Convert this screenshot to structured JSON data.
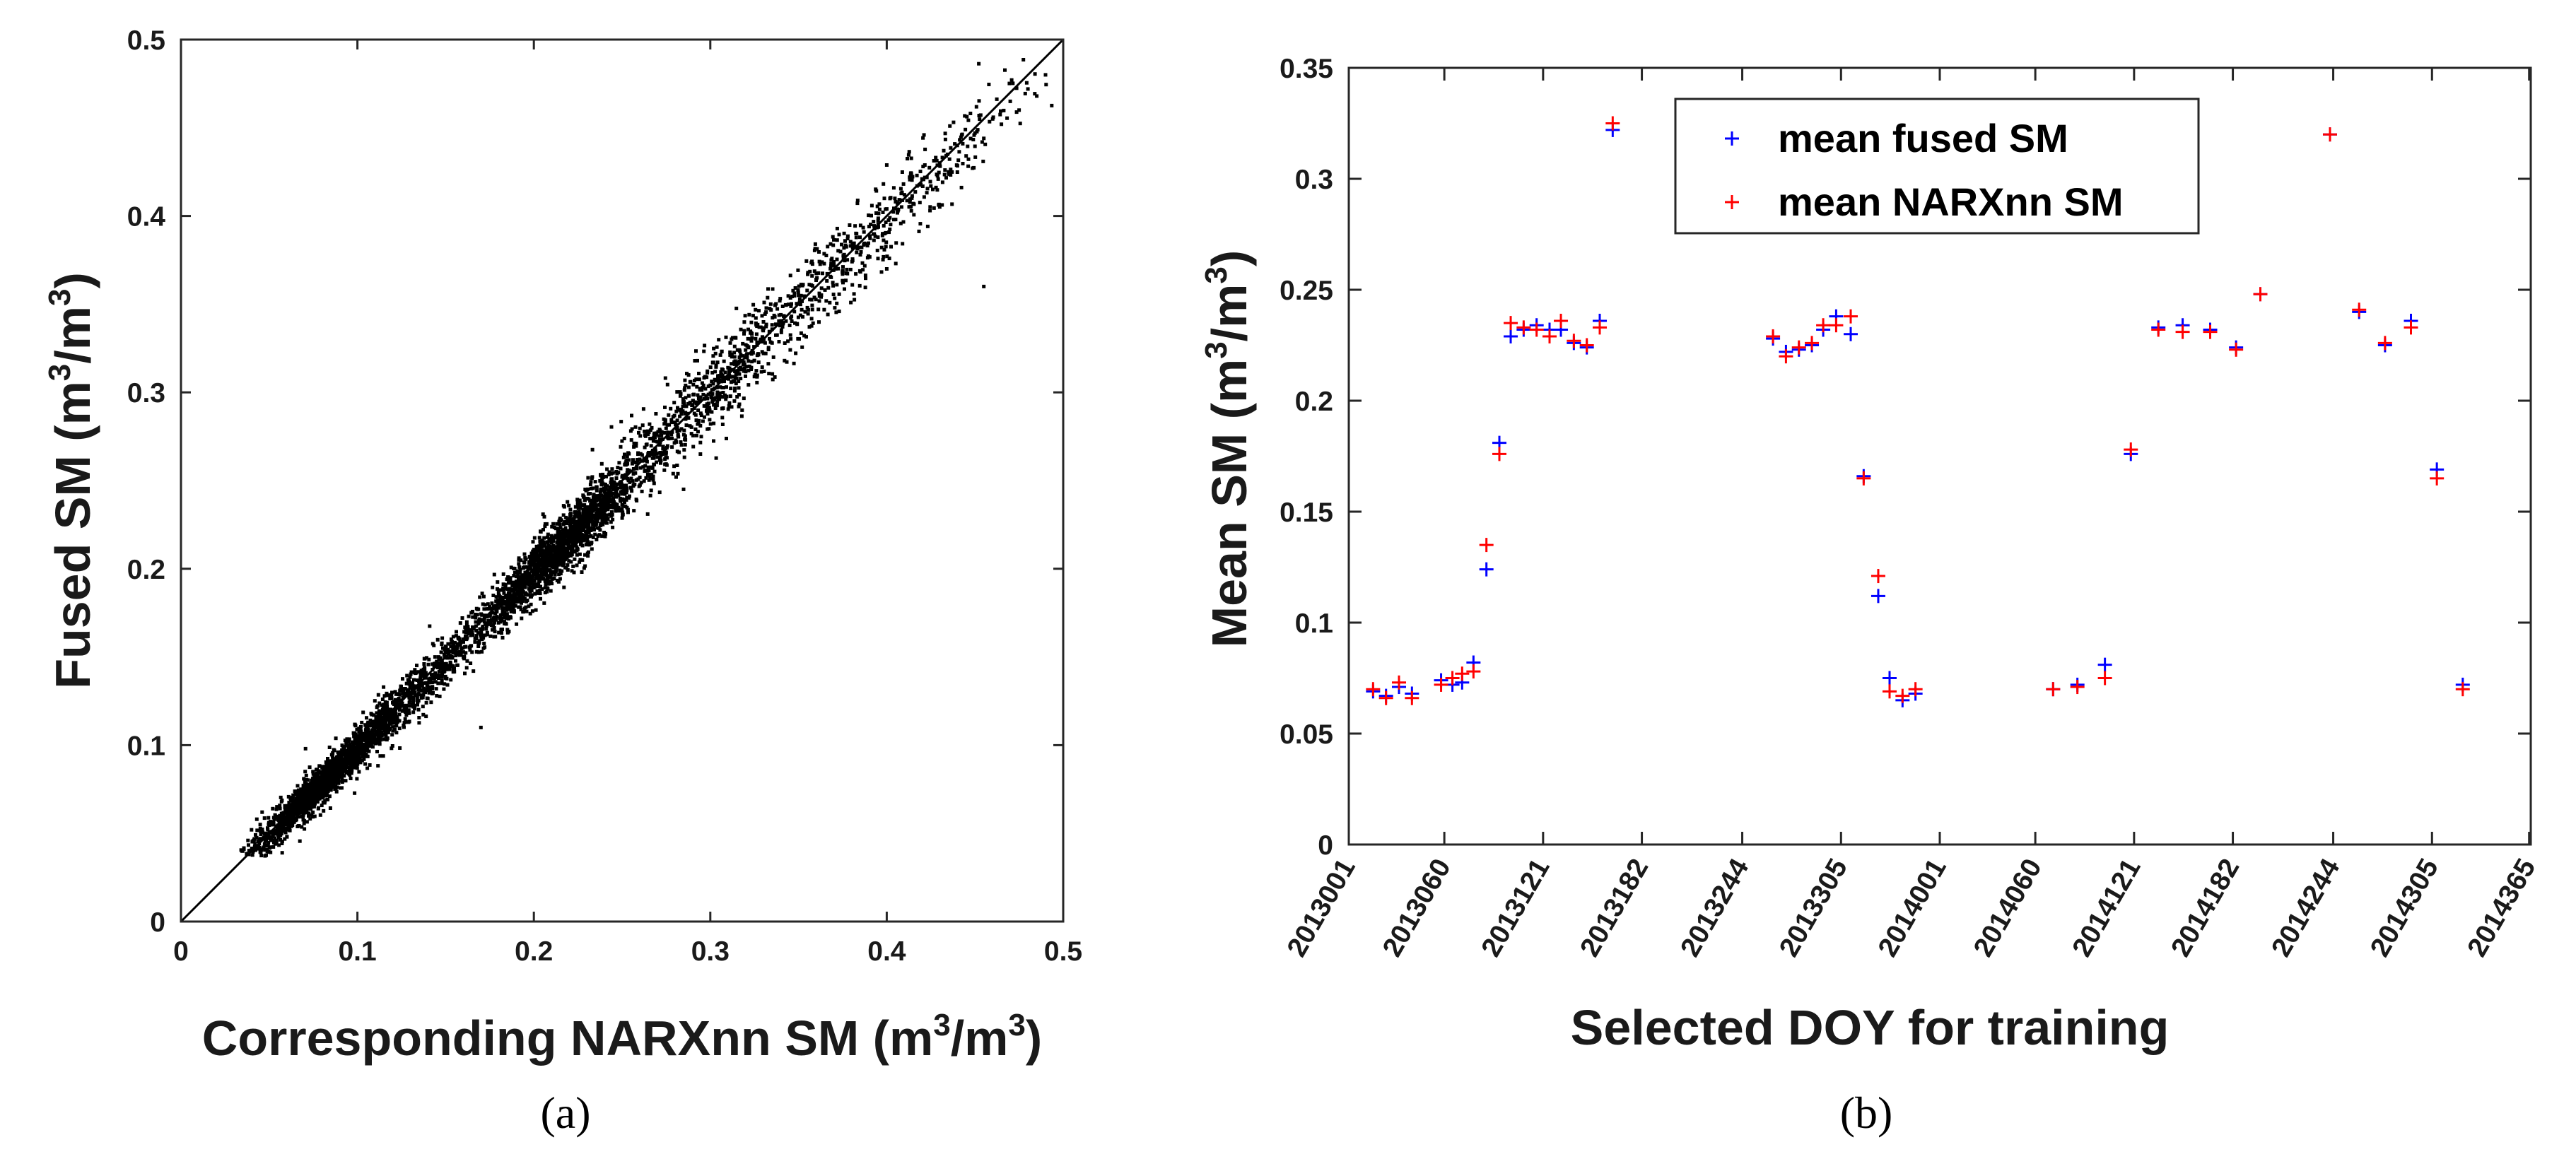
{
  "chart_data": [
    {
      "type": "scatter",
      "panel_label": "(a)",
      "xlabel": {
        "main": "Corresponding NARXnn SM (m",
        "sup1": "3",
        "mid": "/m",
        "sup2": "3",
        "end": ")"
      },
      "ylabel": {
        "main": "Fused SM (m",
        "sup1": "3",
        "mid": "/m",
        "sup2": "3",
        "end": ")"
      },
      "xlim": [
        0,
        0.5
      ],
      "ylim": [
        0,
        0.5
      ],
      "xticks": [
        "0",
        "0.1",
        "0.2",
        "0.3",
        "0.4",
        "0.5"
      ],
      "yticks": [
        "0",
        "0.1",
        "0.2",
        "0.3",
        "0.4",
        "0.5"
      ],
      "one_to_one_line": [
        [
          0,
          0
        ],
        [
          0.5,
          0.5
        ]
      ],
      "points": [
        [
          0.035,
          0.04
        ],
        [
          0.038,
          0.046
        ],
        [
          0.04,
          0.052
        ],
        [
          0.042,
          0.044
        ],
        [
          0.043,
          0.058
        ],
        [
          0.045,
          0.047
        ],
        [
          0.046,
          0.062
        ],
        [
          0.048,
          0.05
        ],
        [
          0.05,
          0.055
        ],
        [
          0.051,
          0.046
        ],
        [
          0.052,
          0.064
        ],
        [
          0.053,
          0.058
        ],
        [
          0.055,
          0.051
        ],
        [
          0.056,
          0.06
        ],
        [
          0.057,
          0.068
        ],
        [
          0.058,
          0.055
        ],
        [
          0.06,
          0.063
        ],
        [
          0.061,
          0.058
        ],
        [
          0.062,
          0.07
        ],
        [
          0.063,
          0.06
        ],
        [
          0.064,
          0.066
        ],
        [
          0.065,
          0.072
        ],
        [
          0.066,
          0.061
        ],
        [
          0.067,
          0.069
        ],
        [
          0.068,
          0.075
        ],
        [
          0.069,
          0.064
        ],
        [
          0.07,
          0.071
        ],
        [
          0.071,
          0.078
        ],
        [
          0.072,
          0.068
        ],
        [
          0.073,
          0.074
        ],
        [
          0.074,
          0.08
        ],
        [
          0.075,
          0.071
        ],
        [
          0.076,
          0.077
        ],
        [
          0.077,
          0.084
        ],
        [
          0.078,
          0.073
        ],
        [
          0.079,
          0.081
        ],
        [
          0.08,
          0.087
        ],
        [
          0.081,
          0.076
        ],
        [
          0.082,
          0.083
        ],
        [
          0.083,
          0.09
        ],
        [
          0.084,
          0.08
        ],
        [
          0.085,
          0.086
        ],
        [
          0.086,
          0.093
        ],
        [
          0.087,
          0.082
        ],
        [
          0.088,
          0.089
        ],
        [
          0.089,
          0.096
        ],
        [
          0.09,
          0.085
        ],
        [
          0.091,
          0.092
        ],
        [
          0.092,
          0.099
        ],
        [
          0.093,
          0.088
        ],
        [
          0.094,
          0.095
        ],
        [
          0.095,
          0.102
        ],
        [
          0.096,
          0.09
        ],
        [
          0.097,
          0.098
        ],
        [
          0.098,
          0.105
        ],
        [
          0.099,
          0.094
        ],
        [
          0.1,
          0.101
        ],
        [
          0.102,
          0.108
        ],
        [
          0.104,
          0.097
        ],
        [
          0.106,
          0.104
        ],
        [
          0.108,
          0.112
        ],
        [
          0.11,
          0.102
        ],
        [
          0.112,
          0.109
        ],
        [
          0.114,
          0.118
        ],
        [
          0.116,
          0.107
        ],
        [
          0.118,
          0.115
        ],
        [
          0.12,
          0.124
        ],
        [
          0.122,
          0.112
        ],
        [
          0.124,
          0.12
        ],
        [
          0.126,
          0.13
        ],
        [
          0.128,
          0.118
        ],
        [
          0.13,
          0.127
        ],
        [
          0.132,
          0.137
        ],
        [
          0.134,
          0.125
        ],
        [
          0.136,
          0.134
        ],
        [
          0.138,
          0.144
        ],
        [
          0.14,
          0.131
        ],
        [
          0.142,
          0.14
        ],
        [
          0.144,
          0.15
        ],
        [
          0.146,
          0.138
        ],
        [
          0.148,
          0.147
        ],
        [
          0.15,
          0.156
        ],
        [
          0.152,
          0.145
        ],
        [
          0.154,
          0.153
        ],
        [
          0.156,
          0.162
        ],
        [
          0.158,
          0.151
        ],
        [
          0.16,
          0.16
        ],
        [
          0.162,
          0.168
        ],
        [
          0.164,
          0.156
        ],
        [
          0.166,
          0.166
        ],
        [
          0.168,
          0.174
        ],
        [
          0.17,
          0.162
        ],
        [
          0.172,
          0.172
        ],
        [
          0.174,
          0.18
        ],
        [
          0.176,
          0.168
        ],
        [
          0.178,
          0.178
        ],
        [
          0.18,
          0.186
        ],
        [
          0.182,
          0.174
        ],
        [
          0.184,
          0.184
        ],
        [
          0.186,
          0.192
        ],
        [
          0.188,
          0.181
        ],
        [
          0.19,
          0.19
        ],
        [
          0.192,
          0.198
        ],
        [
          0.194,
          0.187
        ],
        [
          0.196,
          0.196
        ],
        [
          0.198,
          0.204
        ],
        [
          0.2,
          0.193
        ],
        [
          0.202,
          0.202
        ],
        [
          0.204,
          0.21
        ],
        [
          0.206,
          0.199
        ],
        [
          0.208,
          0.208
        ],
        [
          0.21,
          0.215
        ],
        [
          0.212,
          0.204
        ],
        [
          0.214,
          0.213
        ],
        [
          0.216,
          0.22
        ],
        [
          0.218,
          0.21
        ],
        [
          0.22,
          0.218
        ],
        [
          0.222,
          0.226
        ],
        [
          0.224,
          0.215
        ],
        [
          0.226,
          0.224
        ],
        [
          0.228,
          0.232
        ],
        [
          0.23,
          0.221
        ],
        [
          0.232,
          0.23
        ],
        [
          0.234,
          0.238
        ],
        [
          0.236,
          0.227
        ],
        [
          0.238,
          0.236
        ],
        [
          0.24,
          0.244
        ],
        [
          0.245,
          0.24
        ],
        [
          0.25,
          0.252
        ],
        [
          0.255,
          0.246
        ],
        [
          0.26,
          0.262
        ],
        [
          0.265,
          0.256
        ],
        [
          0.27,
          0.272
        ],
        [
          0.275,
          0.266
        ],
        [
          0.28,
          0.283
        ],
        [
          0.285,
          0.276
        ],
        [
          0.29,
          0.293
        ],
        [
          0.295,
          0.287
        ],
        [
          0.3,
          0.304
        ],
        [
          0.305,
          0.297
        ],
        [
          0.31,
          0.314
        ],
        [
          0.315,
          0.308
        ],
        [
          0.32,
          0.324
        ],
        [
          0.325,
          0.318
        ],
        [
          0.33,
          0.335
        ],
        [
          0.335,
          0.328
        ],
        [
          0.34,
          0.344
        ],
        [
          0.345,
          0.338
        ],
        [
          0.35,
          0.355
        ],
        [
          0.355,
          0.348
        ],
        [
          0.36,
          0.364
        ],
        [
          0.365,
          0.358
        ],
        [
          0.37,
          0.374
        ],
        [
          0.375,
          0.369
        ],
        [
          0.38,
          0.383
        ],
        [
          0.385,
          0.378
        ],
        [
          0.39,
          0.394
        ],
        [
          0.395,
          0.388
        ],
        [
          0.4,
          0.404
        ],
        [
          0.405,
          0.398
        ],
        [
          0.41,
          0.412
        ],
        [
          0.415,
          0.407
        ],
        [
          0.42,
          0.421
        ],
        [
          0.425,
          0.417
        ],
        [
          0.43,
          0.43
        ],
        [
          0.435,
          0.425
        ],
        [
          0.44,
          0.44
        ],
        [
          0.445,
          0.434
        ],
        [
          0.45,
          0.447
        ],
        [
          0.455,
          0.444
        ],
        [
          0.46,
          0.455
        ],
        [
          0.465,
          0.452
        ],
        [
          0.47,
          0.465
        ],
        [
          0.475,
          0.46
        ],
        [
          0.48,
          0.472
        ],
        [
          0.485,
          0.468
        ],
        [
          0.49,
          0.48
        ],
        [
          0.455,
          0.36
        ],
        [
          0.4,
          0.37
        ],
        [
          0.17,
          0.11
        ]
      ],
      "clusters": [
        {
          "cx": 0.08,
          "cy": 0.078,
          "sx": 0.022,
          "sy": 0.02,
          "n": 1600,
          "spread": 0.005
        },
        {
          "cx": 0.13,
          "cy": 0.128,
          "sx": 0.03,
          "sy": 0.03,
          "n": 700,
          "spread": 0.008
        },
        {
          "cx": 0.215,
          "cy": 0.212,
          "sx": 0.022,
          "sy": 0.022,
          "n": 1500,
          "spread": 0.008
        },
        {
          "cx": 0.3,
          "cy": 0.3,
          "sx": 0.045,
          "sy": 0.045,
          "n": 900,
          "spread": 0.012
        },
        {
          "cx": 0.41,
          "cy": 0.405,
          "sx": 0.035,
          "sy": 0.035,
          "n": 300,
          "spread": 0.012
        }
      ]
    },
    {
      "type": "scatter",
      "panel_label": "(b)",
      "xlabel": "Selected DOY for training",
      "ylabel": {
        "main": "Mean SM (m",
        "sup1": "3",
        "mid": "/m",
        "sup2": "3",
        "end": ")"
      },
      "ylim": [
        0,
        0.35
      ],
      "xlim": [
        0,
        730
      ],
      "yticks": [
        "0",
        "0.05",
        "0.1",
        "0.15",
        "0.2",
        "0.25",
        "0.3",
        "0.35"
      ],
      "xticks": [
        {
          "pos": 0,
          "label": "2013001"
        },
        {
          "pos": 59,
          "label": "2013060"
        },
        {
          "pos": 120,
          "label": "2013121"
        },
        {
          "pos": 181,
          "label": "2013182"
        },
        {
          "pos": 243,
          "label": "2013244"
        },
        {
          "pos": 304,
          "label": "2013305"
        },
        {
          "pos": 365,
          "label": "2014001"
        },
        {
          "pos": 424,
          "label": "2014060"
        },
        {
          "pos": 485,
          "label": "2014121"
        },
        {
          "pos": 546,
          "label": "2014182"
        },
        {
          "pos": 608,
          "label": "2014244"
        },
        {
          "pos": 669,
          "label": "2014305"
        },
        {
          "pos": 729,
          "label": "2014365"
        }
      ],
      "legend": {
        "position": "top-center",
        "entries": [
          {
            "label": "mean fused SM",
            "color": "#0000ff"
          },
          {
            "label": "mean NARXnn SM",
            "color": "#ff0000"
          }
        ]
      },
      "series": [
        {
          "name": "mean fused SM",
          "color": "#0000ff",
          "points": [
            [
              15,
              0.069
            ],
            [
              23,
              0.067
            ],
            [
              31,
              0.071
            ],
            [
              39,
              0.068
            ],
            [
              57,
              0.074
            ],
            [
              64,
              0.072
            ],
            [
              70,
              0.073
            ],
            [
              77,
              0.082
            ],
            [
              85,
              0.124
            ],
            [
              93,
              0.181
            ],
            [
              100,
              0.229
            ],
            [
              108,
              0.232
            ],
            [
              116,
              0.234
            ],
            [
              124,
              0.232
            ],
            [
              131,
              0.232
            ],
            [
              139,
              0.226
            ],
            [
              147,
              0.224
            ],
            [
              155,
              0.236
            ],
            [
              163,
              0.322
            ],
            [
              262,
              0.228
            ],
            [
              270,
              0.222
            ],
            [
              278,
              0.223
            ],
            [
              286,
              0.225
            ],
            [
              293,
              0.232
            ],
            [
              301,
              0.238
            ],
            [
              310,
              0.23
            ],
            [
              318,
              0.166
            ],
            [
              327,
              0.112
            ],
            [
              334,
              0.075
            ],
            [
              342,
              0.065
            ],
            [
              350,
              0.068
            ],
            [
              435,
              0.07
            ],
            [
              450,
              0.072
            ],
            [
              467,
              0.081
            ],
            [
              483,
              0.176
            ],
            [
              500,
              0.233
            ],
            [
              515,
              0.234
            ],
            [
              532,
              0.232
            ],
            [
              548,
              0.224
            ],
            [
              563,
              0.248
            ],
            [
              606,
              0.32
            ],
            [
              624,
              0.24
            ],
            [
              640,
              0.225
            ],
            [
              656,
              0.236
            ],
            [
              672,
              0.169
            ],
            [
              688,
              0.072
            ]
          ]
        },
        {
          "name": "mean NARXnn SM",
          "color": "#ff0000",
          "points": [
            [
              15,
              0.07
            ],
            [
              23,
              0.066
            ],
            [
              31,
              0.073
            ],
            [
              39,
              0.066
            ],
            [
              57,
              0.072
            ],
            [
              64,
              0.075
            ],
            [
              70,
              0.077
            ],
            [
              77,
              0.078
            ],
            [
              85,
              0.135
            ],
            [
              93,
              0.176
            ],
            [
              100,
              0.235
            ],
            [
              108,
              0.233
            ],
            [
              116,
              0.232
            ],
            [
              124,
              0.229
            ],
            [
              131,
              0.236
            ],
            [
              139,
              0.227
            ],
            [
              147,
              0.225
            ],
            [
              155,
              0.233
            ],
            [
              163,
              0.325
            ],
            [
              262,
              0.229
            ],
            [
              270,
              0.22
            ],
            [
              278,
              0.224
            ],
            [
              286,
              0.226
            ],
            [
              293,
              0.234
            ],
            [
              301,
              0.234
            ],
            [
              310,
              0.238
            ],
            [
              318,
              0.165
            ],
            [
              327,
              0.121
            ],
            [
              334,
              0.069
            ],
            [
              342,
              0.067
            ],
            [
              350,
              0.07
            ],
            [
              435,
              0.07
            ],
            [
              450,
              0.071
            ],
            [
              467,
              0.075
            ],
            [
              483,
              0.178
            ],
            [
              500,
              0.232
            ],
            [
              515,
              0.231
            ],
            [
              532,
              0.231
            ],
            [
              548,
              0.223
            ],
            [
              563,
              0.248
            ],
            [
              606,
              0.32
            ],
            [
              624,
              0.241
            ],
            [
              640,
              0.226
            ],
            [
              656,
              0.233
            ],
            [
              672,
              0.165
            ],
            [
              688,
              0.07
            ]
          ]
        }
      ]
    }
  ]
}
